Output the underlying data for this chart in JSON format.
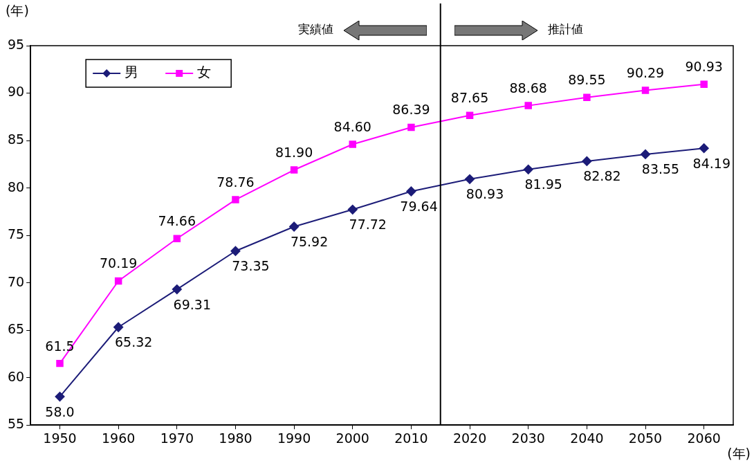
{
  "chart_data": {
    "type": "line",
    "ylabel": "(年)",
    "xlabel": "(年)",
    "x": [
      1950,
      1960,
      1970,
      1980,
      1990,
      2000,
      2010,
      2020,
      2030,
      2040,
      2050,
      2060
    ],
    "xlim": [
      1945,
      2065
    ],
    "xticks": [
      1950,
      1960,
      1970,
      1980,
      1990,
      2000,
      2010,
      2020,
      2030,
      2040,
      2050,
      2060
    ],
    "ylim": [
      55,
      95
    ],
    "yticks": [
      55,
      60,
      65,
      70,
      75,
      80,
      85,
      90,
      95
    ],
    "grid": false,
    "legend": "top left",
    "line_style": "solid",
    "series": [
      {
        "name": "男",
        "color": "#1c1c78",
        "marker": "diamond",
        "values": [
          58.0,
          65.32,
          69.31,
          73.35,
          75.92,
          77.72,
          79.64,
          80.93,
          81.95,
          82.82,
          83.55,
          84.19
        ],
        "value_labels": [
          "58.0",
          "65.32",
          "69.31",
          "73.35",
          "75.92",
          "77.72",
          "79.64",
          "80.93",
          "81.95",
          "82.82",
          "83.55",
          "84.19"
        ]
      },
      {
        "name": "女",
        "color": "#ff00ff",
        "marker": "square",
        "values": [
          61.5,
          70.19,
          74.66,
          78.76,
          81.9,
          84.6,
          86.39,
          87.65,
          88.68,
          89.55,
          90.29,
          90.93
        ],
        "value_labels": [
          "61.5",
          "70.19",
          "74.66",
          "78.76",
          "81.90",
          "84.60",
          "86.39",
          "87.65",
          "88.68",
          "89.55",
          "90.29",
          "90.93"
        ]
      }
    ],
    "ref_lines": [
      {
        "axis": "x",
        "value": 2015,
        "color": "#000000"
      }
    ],
    "annotations": [
      "実績値",
      "推計値"
    ]
  }
}
